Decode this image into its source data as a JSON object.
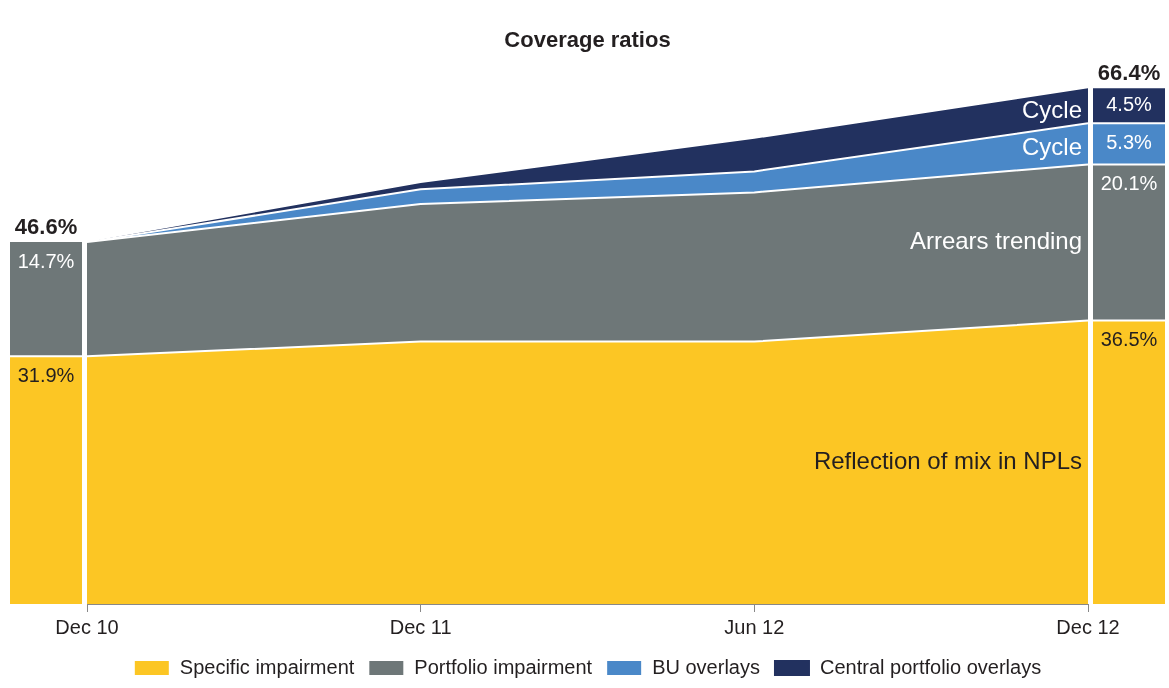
{
  "chart_data": {
    "type": "area",
    "title": "Coverage ratios",
    "stacked": true,
    "legend": "bottom",
    "categories": [
      "Dec 10",
      "Dec 11",
      "Jun 12",
      "Dec 12"
    ],
    "series": [
      {
        "name": "Specific impairment",
        "color": "#fcc624",
        "values": [
          31.9,
          33.8,
          33.8,
          36.5
        ],
        "value_labels": [
          "31.9%",
          null,
          null,
          "36.5%"
        ]
      },
      {
        "name": "Portfolio impairment",
        "color": "#6e7778",
        "values": [
          14.7,
          17.7,
          19.2,
          20.1
        ],
        "value_labels": [
          "14.7%",
          null,
          null,
          "20.1%"
        ]
      },
      {
        "name": "BU overlays",
        "color": "#4a88c8",
        "values": [
          0,
          1.9,
          2.7,
          5.3
        ],
        "value_labels": [
          null,
          null,
          null,
          "5.3%"
        ]
      },
      {
        "name": "Central portfolio overlays",
        "color": "#22315f",
        "values": [
          0,
          0.8,
          4.2,
          4.5
        ],
        "value_labels": [
          null,
          null,
          null,
          "4.5%"
        ]
      }
    ],
    "totals": [
      "46.6%",
      null,
      null,
      "66.4%"
    ],
    "annotations": [
      {
        "text": "Reflection of mix in NPLs",
        "x": "Dec 12",
        "y": 18.2
      },
      {
        "text": "Arrears trending",
        "x": "Dec 12",
        "y": 46.6
      },
      {
        "text": "Cycle",
        "x": "Dec 12",
        "y": 58.7
      },
      {
        "text": "Cycle",
        "x": "Dec 12",
        "y": 63.4
      }
    ]
  }
}
